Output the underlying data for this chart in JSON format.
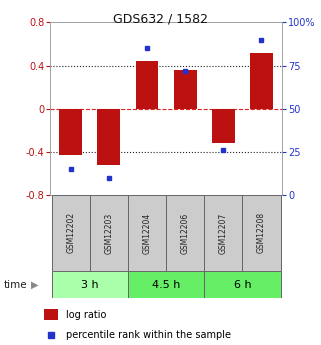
{
  "title": "GDS632 / 1582",
  "samples": [
    "GSM12202",
    "GSM12203",
    "GSM12204",
    "GSM12206",
    "GSM12207",
    "GSM12208"
  ],
  "log_ratios": [
    -0.43,
    -0.52,
    0.44,
    0.36,
    -0.32,
    0.52
  ],
  "percentile_ranks": [
    15,
    10,
    85,
    72,
    26,
    90
  ],
  "time_groups": [
    {
      "label": "3 h",
      "span": [
        0,
        2
      ]
    },
    {
      "label": "4.5 h",
      "span": [
        2,
        4
      ]
    },
    {
      "label": "6 h",
      "span": [
        4,
        6
      ]
    }
  ],
  "ylim_left": [
    -0.8,
    0.8
  ],
  "ylim_right": [
    0,
    100
  ],
  "yticks_left": [
    -0.8,
    -0.4,
    0,
    0.4,
    0.8
  ],
  "ytick_labels_left": [
    "-0.8",
    "-0.4",
    "0",
    "0.4",
    "0.8"
  ],
  "yticks_right": [
    0,
    25,
    50,
    75,
    100
  ],
  "ytick_labels_right": [
    "0",
    "25",
    "50",
    "75",
    "100%"
  ],
  "bar_color": "#bb1111",
  "dot_color": "#2233cc",
  "bg_color": "#ffffff",
  "sample_box_color": "#cccccc",
  "time_box_color_light": "#aaffaa",
  "time_box_color_dark": "#66ee66",
  "zero_line_color": "#dd2222",
  "grid_color": "#222222",
  "bar_width": 0.6,
  "title_fontsize": 9,
  "tick_fontsize": 7,
  "sample_fontsize": 5.5,
  "time_fontsize": 8,
  "legend_fontsize": 7
}
